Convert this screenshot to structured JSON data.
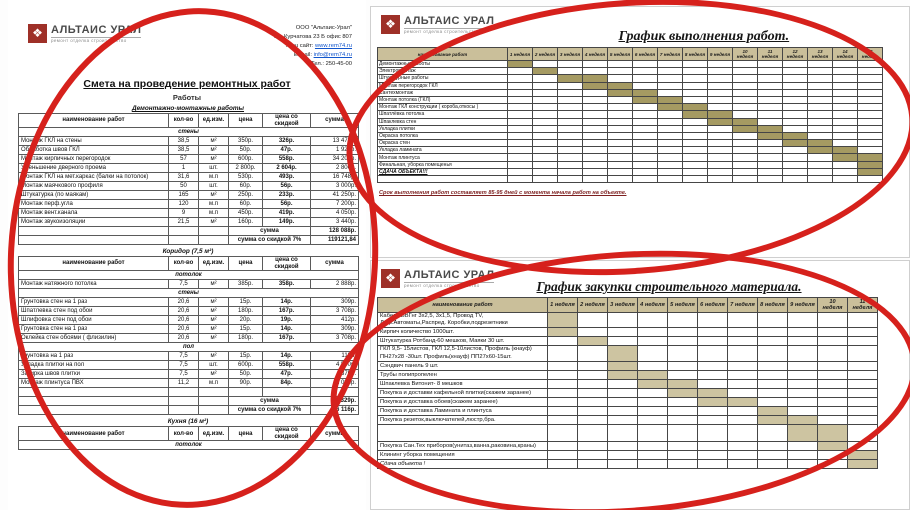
{
  "colors": {
    "annotation_red": "#d6211c",
    "logo_red": "#9e3028",
    "work_bar": "#a59a62",
    "purchase_bar": "#cdc4a1",
    "gantt_header_bg": "#cabf9a"
  },
  "logo": {
    "brand": "АЛЬТАИС УРАЛ",
    "tagline": "ремонт отделка строительство",
    "mark_glyph": "❖"
  },
  "estimate": {
    "contacts": [
      {
        "text": "ООО \"Альтаис-Урал\""
      },
      {
        "text": "Ул. Курчатова 23 Б офис 807"
      },
      {
        "label": "Наш сайт: ",
        "link": "www.rem74.ru"
      },
      {
        "label": "E-mail: ",
        "link": "info@rem74.ru"
      },
      {
        "text": "Тел.: 250-45-00"
      }
    ],
    "title": "Смета на проведение ремонтных работ",
    "subtitle": "Работы",
    "columns": [
      "наименование работ",
      "кол-во",
      "ед.изм.",
      "цена",
      "цена со скидкой",
      "сумма"
    ],
    "sum_label": "сумма",
    "discount_label": "сумма со скидкой 7%",
    "sections": [
      {
        "title": "Демонтажно-монтажные работы",
        "underline": true,
        "groups": [
          {
            "name": "стены",
            "rows": [
              [
                "Монтаж ГКЛ на стены",
                "38,5",
                "м²",
                "350р.",
                "326р.",
                "13 475р."
              ],
              [
                "Обработка швов ГКЛ",
                "38,5",
                "м²",
                "50р.",
                "47р.",
                "1 925р."
              ],
              [
                "Монтаж кирпичных перегородок",
                "57",
                "м²",
                "600р.",
                "558р.",
                "34 200р."
              ],
              [
                "Уменьшение дверного проема",
                "1",
                "шт.",
                "2 800р.",
                "2 604р.",
                "2 800р."
              ],
              [
                "Монтаж ГКЛ на мет.каркас (балки на потолок)",
                "31,6",
                "м.п",
                "530р.",
                "493р.",
                "16 748р."
              ],
              [
                "Монтаж маячкового профиля",
                "50",
                "шт.",
                "60р.",
                "56р.",
                "3 000р."
              ],
              [
                "Штукатурка (по маякам)",
                "165",
                "м²",
                "250р.",
                "233р.",
                "41 250р."
              ],
              [
                "Монтаж перф.угла",
                "120",
                "м.п",
                "60р.",
                "56р.",
                "7 200р."
              ],
              [
                "Монтаж вент.канала",
                "9",
                "м.п",
                "450р.",
                "419р.",
                "4 050р."
              ],
              [
                "Монтаж звукоизоляции",
                "21,5",
                "м²",
                "160р.",
                "149р.",
                "3 440р."
              ]
            ]
          }
        ],
        "sum": "128 088р.",
        "discount_sum": "119121,84"
      },
      {
        "title": "Коридор (7,5 м²)",
        "groups": [
          {
            "name": "потолок",
            "rows": [
              [
                "Монтаж натяжного потолка",
                "7,5",
                "м²",
                "385р.",
                "358р.",
                "2 888р."
              ]
            ]
          },
          {
            "name": "стены",
            "rows": [
              [
                "Грунтовка стен на 1 раз",
                "20,6",
                "м²",
                "15р.",
                "14р.",
                "309р."
              ],
              [
                "Шпатлевка стен под обои",
                "20,6",
                "м²",
                "180р.",
                "167р.",
                "3 708р."
              ],
              [
                "Шлифовка стен под обои",
                "20,6",
                "м²",
                "20р.",
                "19р.",
                "412р."
              ],
              [
                "Грунтовка стен на 1 раз",
                "20,6",
                "м²",
                "15р.",
                "14р.",
                "309р."
              ],
              [
                "Оклейка стен обоями ( флизилин)",
                "20,6",
                "м²",
                "180р.",
                "167р.",
                "3 708р."
              ]
            ]
          },
          {
            "name": "пол",
            "rows": [
              [
                "Грунтовка  на 1 раз",
                "7,5",
                "м²",
                "15р.",
                "14р.",
                "113р."
              ],
              [
                "Укладка плитки на пол",
                "7,5",
                "шт.",
                "600р.",
                "558р.",
                "4 500р."
              ],
              [
                "Затирка швов плитки",
                "7,5",
                "м²",
                "50р.",
                "47р.",
                "375р."
              ],
              [
                "Монтаж плинтуса ПВХ",
                "11,2",
                "м.п",
                "90р.",
                "84р.",
                "1 008р."
              ],
              [
                "",
                "",
                "",
                "",
                "",
                ""
              ]
            ]
          }
        ],
        "sum": "17 329р.",
        "discount_sum": "16 116р."
      },
      {
        "title": "Кухня (16 м²)",
        "groups": [
          {
            "name": "потолок",
            "rows": []
          }
        ]
      }
    ]
  },
  "work_schedule": {
    "title": "График выполнения работ.",
    "name_col": "наименование работ",
    "weeks": [
      "1 неделя",
      "2 неделя",
      "3 неделя",
      "4 неделя",
      "5 неделя",
      "6 неделя",
      "7 неделя",
      "8 неделя",
      "9 неделя",
      "10 неделя",
      "11 неделя",
      "12 неделя",
      "13 неделя",
      "14 неделя",
      "15 неделя"
    ],
    "tasks": [
      {
        "label": "Демонтажные работы",
        "start": 1,
        "span": 1
      },
      {
        "label": "Электромонтаж",
        "start": 2,
        "span": 1
      },
      {
        "label": "Штукатурные работы",
        "start": 3,
        "span": 2
      },
      {
        "label": "Монтаж  перегородок ГКЛ",
        "start": 4,
        "span": 2
      },
      {
        "label": "Сантехмонтаж",
        "start": 5,
        "span": 2
      },
      {
        "label": "Монтаж потолка (ГКЛ)",
        "start": 6,
        "span": 2
      },
      {
        "label": "Монтаж ГКЛ конструкции ( короба,откосы )",
        "start": 7,
        "span": 2
      },
      {
        "label": "Шпатлёвка  потолка",
        "start": 8,
        "span": 2
      },
      {
        "label": "Шпаклевка стен",
        "start": 9,
        "span": 2
      },
      {
        "label": "Укладка плитки",
        "start": 10,
        "span": 2
      },
      {
        "label": "Окраска потолка",
        "start": 11,
        "span": 2
      },
      {
        "label": "Окраска стен",
        "start": 12,
        "span": 2
      },
      {
        "label": "Укладка ламината",
        "start": 13,
        "span": 2
      },
      {
        "label": "Монтаж плинтуса",
        "start": 14,
        "span": 2
      },
      {
        "label": "Финальная, уборка помещенья",
        "start": 15,
        "span": 1
      },
      {
        "label": "СДАЧА ОБЪЕКТА!!!",
        "start": 15,
        "span": 1,
        "style": "b-u"
      },
      {
        "label": "",
        "start": 0,
        "span": 0
      }
    ],
    "footnote": "Срок выполнения работ составляет 85-95 дней с момента начала работ на объекте."
  },
  "purchase_schedule": {
    "title": "График закупки строительного материала.",
    "name_col": "наименование работ",
    "weeks": [
      "1 неделя",
      "2 неделя",
      "3 неделя",
      "4 неделя",
      "5 неделя",
      "6 неделя",
      "7 неделя",
      "8 неделя",
      "9 неделя",
      "10 неделя",
      "11 неделя"
    ],
    "tasks": [
      {
        "label": "Кабель ВВГнг 3х2,5, 3х1,5, Провод TV,\nДиф.Автоматы,Распред. Коробки,подрезетники",
        "start": 1,
        "span": 1
      },
      {
        "label": "Кирпич количество 1000шт.",
        "start": 1,
        "span": 1
      },
      {
        "label": "Штукатурка Ротбанд-60 мешков, Маяки 30 шт.",
        "start": 2,
        "span": 1
      },
      {
        "label": "ГКЛ 9,5- 15листов, ГКЛ 12,5-10листов, Профиль (кнауф)\nПН27х28 -30шт. Профиль(кнауф) ПП27х60-15шт.",
        "start": 3,
        "span": 1
      },
      {
        "label": "Сэндвич панель 9 шт.",
        "start": 3,
        "span": 1
      },
      {
        "label": "Трубы полипропелен",
        "start": 3,
        "span": 2
      },
      {
        "label": "Шпаклевка Витонит- 8 мешков",
        "start": 4,
        "span": 2
      },
      {
        "label": "Покупка и доставки кафельной плитки(скажем заранее)",
        "start": 5,
        "span": 2
      },
      {
        "label": "Покупка и доставка обоев(скажем заранее)",
        "start": 6,
        "span": 2
      },
      {
        "label": "Покупка и доставка Ламината и плинтуса",
        "start": 8,
        "span": 1
      },
      {
        "label": "Покупка резеток,выключателей,люстр,бра.",
        "start": 8,
        "span": 2
      },
      {
        "label": "",
        "start": 9,
        "span": 2,
        "tall": true
      },
      {
        "label": "Покупка Сан.Тех приборов(унитаз,ванна,раковина,краны)",
        "start": 10,
        "span": 1
      },
      {
        "label": "Клининг уборка помещения",
        "start": 11,
        "span": 1
      },
      {
        "label": "Сдача объекта !",
        "start": 11,
        "span": 1,
        "style": "ital"
      }
    ]
  }
}
